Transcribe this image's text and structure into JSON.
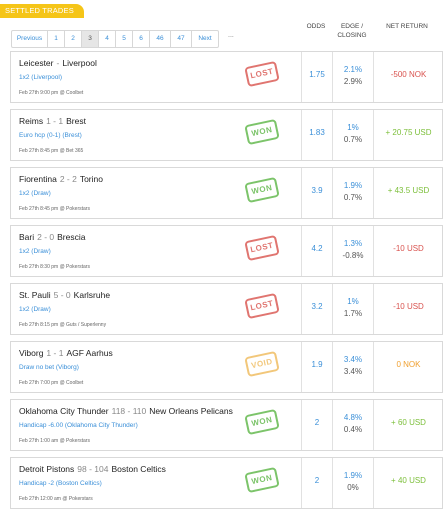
{
  "header": {
    "title": "SETTLED TRADES"
  },
  "columns": {
    "odds": "ODDS",
    "edge_line1": "EDGE /",
    "edge_line2": "CLOSING",
    "net_return": "NET RETURN"
  },
  "pagination": {
    "items": [
      "Previous",
      "1",
      "2",
      "3",
      "4",
      "5",
      "6",
      "46",
      "47",
      "Next"
    ],
    "current": "3",
    "ellipsis": "..."
  },
  "trades": [
    {
      "home": "Leicester",
      "score": "-",
      "away": "Liverpool",
      "market": "1x2 (Liverpool)",
      "meta": "Feb 27th 9:00 pm @ Coolbet",
      "result": "LOST",
      "odds": "1.75",
      "edge": "2.1%",
      "closing": "2.9%",
      "net": "-500 NOK",
      "net_type": "neg"
    },
    {
      "home": "Reims",
      "score": "1 - 1",
      "away": "Brest",
      "market": "Euro hcp (0-1) (Brest)",
      "meta": "Feb 27th 8:45 pm @ Bet 365",
      "result": "WON",
      "odds": "1.83",
      "edge": "1%",
      "closing": "0.7%",
      "net": "+ 20.75 USD",
      "net_type": "pos"
    },
    {
      "home": "Fiorentina",
      "score": "2 - 2",
      "away": "Torino",
      "market": "1x2 (Draw)",
      "meta": "Feb 27th 8:45 pm @ Pokerstars",
      "result": "WON",
      "odds": "3.9",
      "edge": "1.9%",
      "closing": "0.7%",
      "net": "+ 43.5 USD",
      "net_type": "pos"
    },
    {
      "home": "Bari",
      "score": "2 - 0",
      "away": "Brescia",
      "market": "1x2 (Draw)",
      "meta": "Feb 27th 8:30 pm @ Pokerstars",
      "result": "LOST",
      "odds": "4.2",
      "edge": "1.3%",
      "closing": "-0.8%",
      "net": "-10 USD",
      "net_type": "neg"
    },
    {
      "home": "St. Pauli",
      "score": "5 - 0",
      "away": "Karlsruhe",
      "market": "1x2 (Draw)",
      "meta": "Feb 27th 8:15 pm @ Guts / Superlenny",
      "result": "LOST",
      "odds": "3.2",
      "edge": "1%",
      "closing": "1.7%",
      "net": "-10 USD",
      "net_type": "neg"
    },
    {
      "home": "Viborg",
      "score": "1 - 1",
      "away": "AGF Aarhus",
      "market": "Draw no bet (Viborg)",
      "meta": "Feb 27th 7:00 pm @ Coolbet",
      "result": "VOID",
      "odds": "1.9",
      "edge": "3.4%",
      "closing": "3.4%",
      "net": "0 NOK",
      "net_type": "zero"
    },
    {
      "home": "Oklahoma City Thunder",
      "score": "118 - 110",
      "away": "New Orleans Pelicans",
      "market": "Handicap -6.00 (Oklahoma City Thunder)",
      "meta": "Feb 27th 1:00 am @ Pokerstars",
      "result": "WON",
      "odds": "2",
      "edge": "4.8%",
      "closing": "0.4%",
      "net": "+ 60 USD",
      "net_type": "pos"
    },
    {
      "home": "Detroit Pistons",
      "score": "98 - 104",
      "away": "Boston Celtics",
      "market": "Handicap -2 (Boston Celtics)",
      "meta": "Feb 27th 12:00 am @ Pokerstars",
      "result": "WON",
      "odds": "2",
      "edge": "1.9%",
      "closing": "0%",
      "net": "+ 40 USD",
      "net_type": "pos"
    }
  ]
}
